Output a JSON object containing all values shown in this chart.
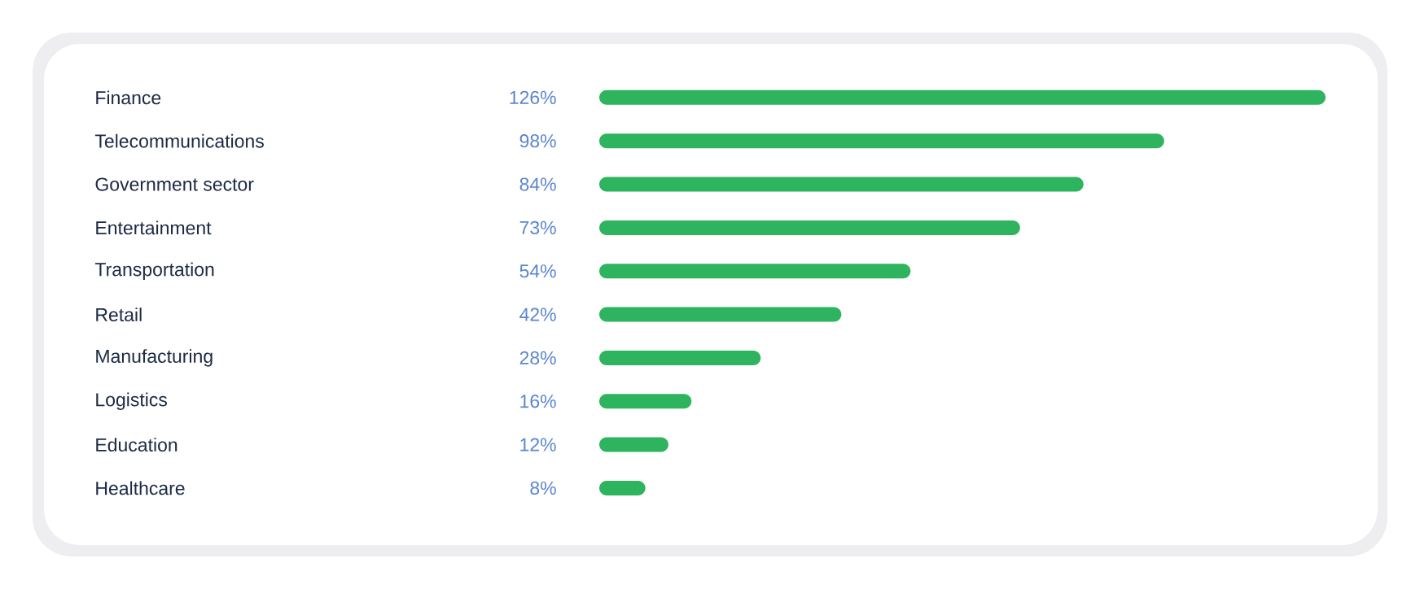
{
  "chart_data": {
    "type": "bar",
    "orientation": "horizontal",
    "categories": [
      "Finance",
      "Telecommunications",
      "Government sector",
      "Entertainment",
      "Transportation",
      "Retail",
      "Manufacturing",
      "Logistics",
      "Education",
      "Healthcare"
    ],
    "values": [
      126,
      98,
      84,
      73,
      54,
      42,
      28,
      16,
      12,
      8
    ],
    "value_labels": [
      "126%",
      "98%",
      "84%",
      "73%",
      "54%",
      "42%",
      "28%",
      "16%",
      "12%",
      "8%"
    ],
    "color": "#2eb35e"
  }
}
